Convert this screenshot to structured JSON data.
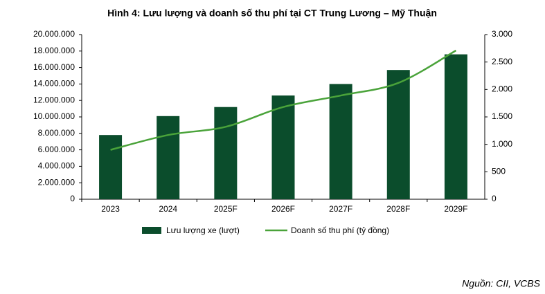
{
  "chart_data": {
    "type": "combo",
    "title": "Hình 4: Lưu lượng và doanh số thu phí tại CT Trung Lương – Mỹ Thuận",
    "categories": [
      "2023",
      "2024",
      "2025F",
      "2026F",
      "2027F",
      "2028F",
      "2029F"
    ],
    "series": [
      {
        "name": "Lưu lượng xe (lượt)",
        "type": "bar",
        "color": "#0b4d2c",
        "values": [
          7800000,
          10100000,
          11200000,
          12600000,
          14000000,
          15700000,
          17600000
        ]
      },
      {
        "name": "Doanh số thu phí (tỷ đồng)",
        "type": "line",
        "axis": "y2",
        "color": "#4aa33a",
        "values": [
          900,
          1170,
          1320,
          1680,
          1890,
          2120,
          2710
        ]
      }
    ],
    "ylim": [
      0,
      20000000
    ],
    "yticks": [
      0,
      {
        "value": 2000000,
        "label": "2.000.000"
      },
      {
        "value": 4000000,
        "label": "4.000.000"
      },
      {
        "value": 6000000,
        "label": "6.000.000"
      },
      {
        "value": 8000000,
        "label": "8.000.000"
      },
      {
        "value": 10000000,
        "label": "10.000.000"
      },
      {
        "value": 12000000,
        "label": "12.000.000"
      },
      {
        "value": 14000000,
        "label": "14.000.000"
      },
      {
        "value": 16000000,
        "label": "16.000.000"
      },
      {
        "value": 18000000,
        "label": "18.000.000"
      },
      {
        "value": 20000000,
        "label": "20.000.000"
      }
    ],
    "y2lim": [
      0,
      3000
    ],
    "y2ticks": [
      0,
      500,
      {
        "value": 1000,
        "label": "1.000"
      },
      {
        "value": 1500,
        "label": "1.500"
      },
      {
        "value": 2000,
        "label": "2.000"
      },
      {
        "value": 2500,
        "label": "2.500"
      },
      {
        "value": 3000,
        "label": "3.000"
      }
    ],
    "source": "Nguồn: CII, VCBS"
  }
}
